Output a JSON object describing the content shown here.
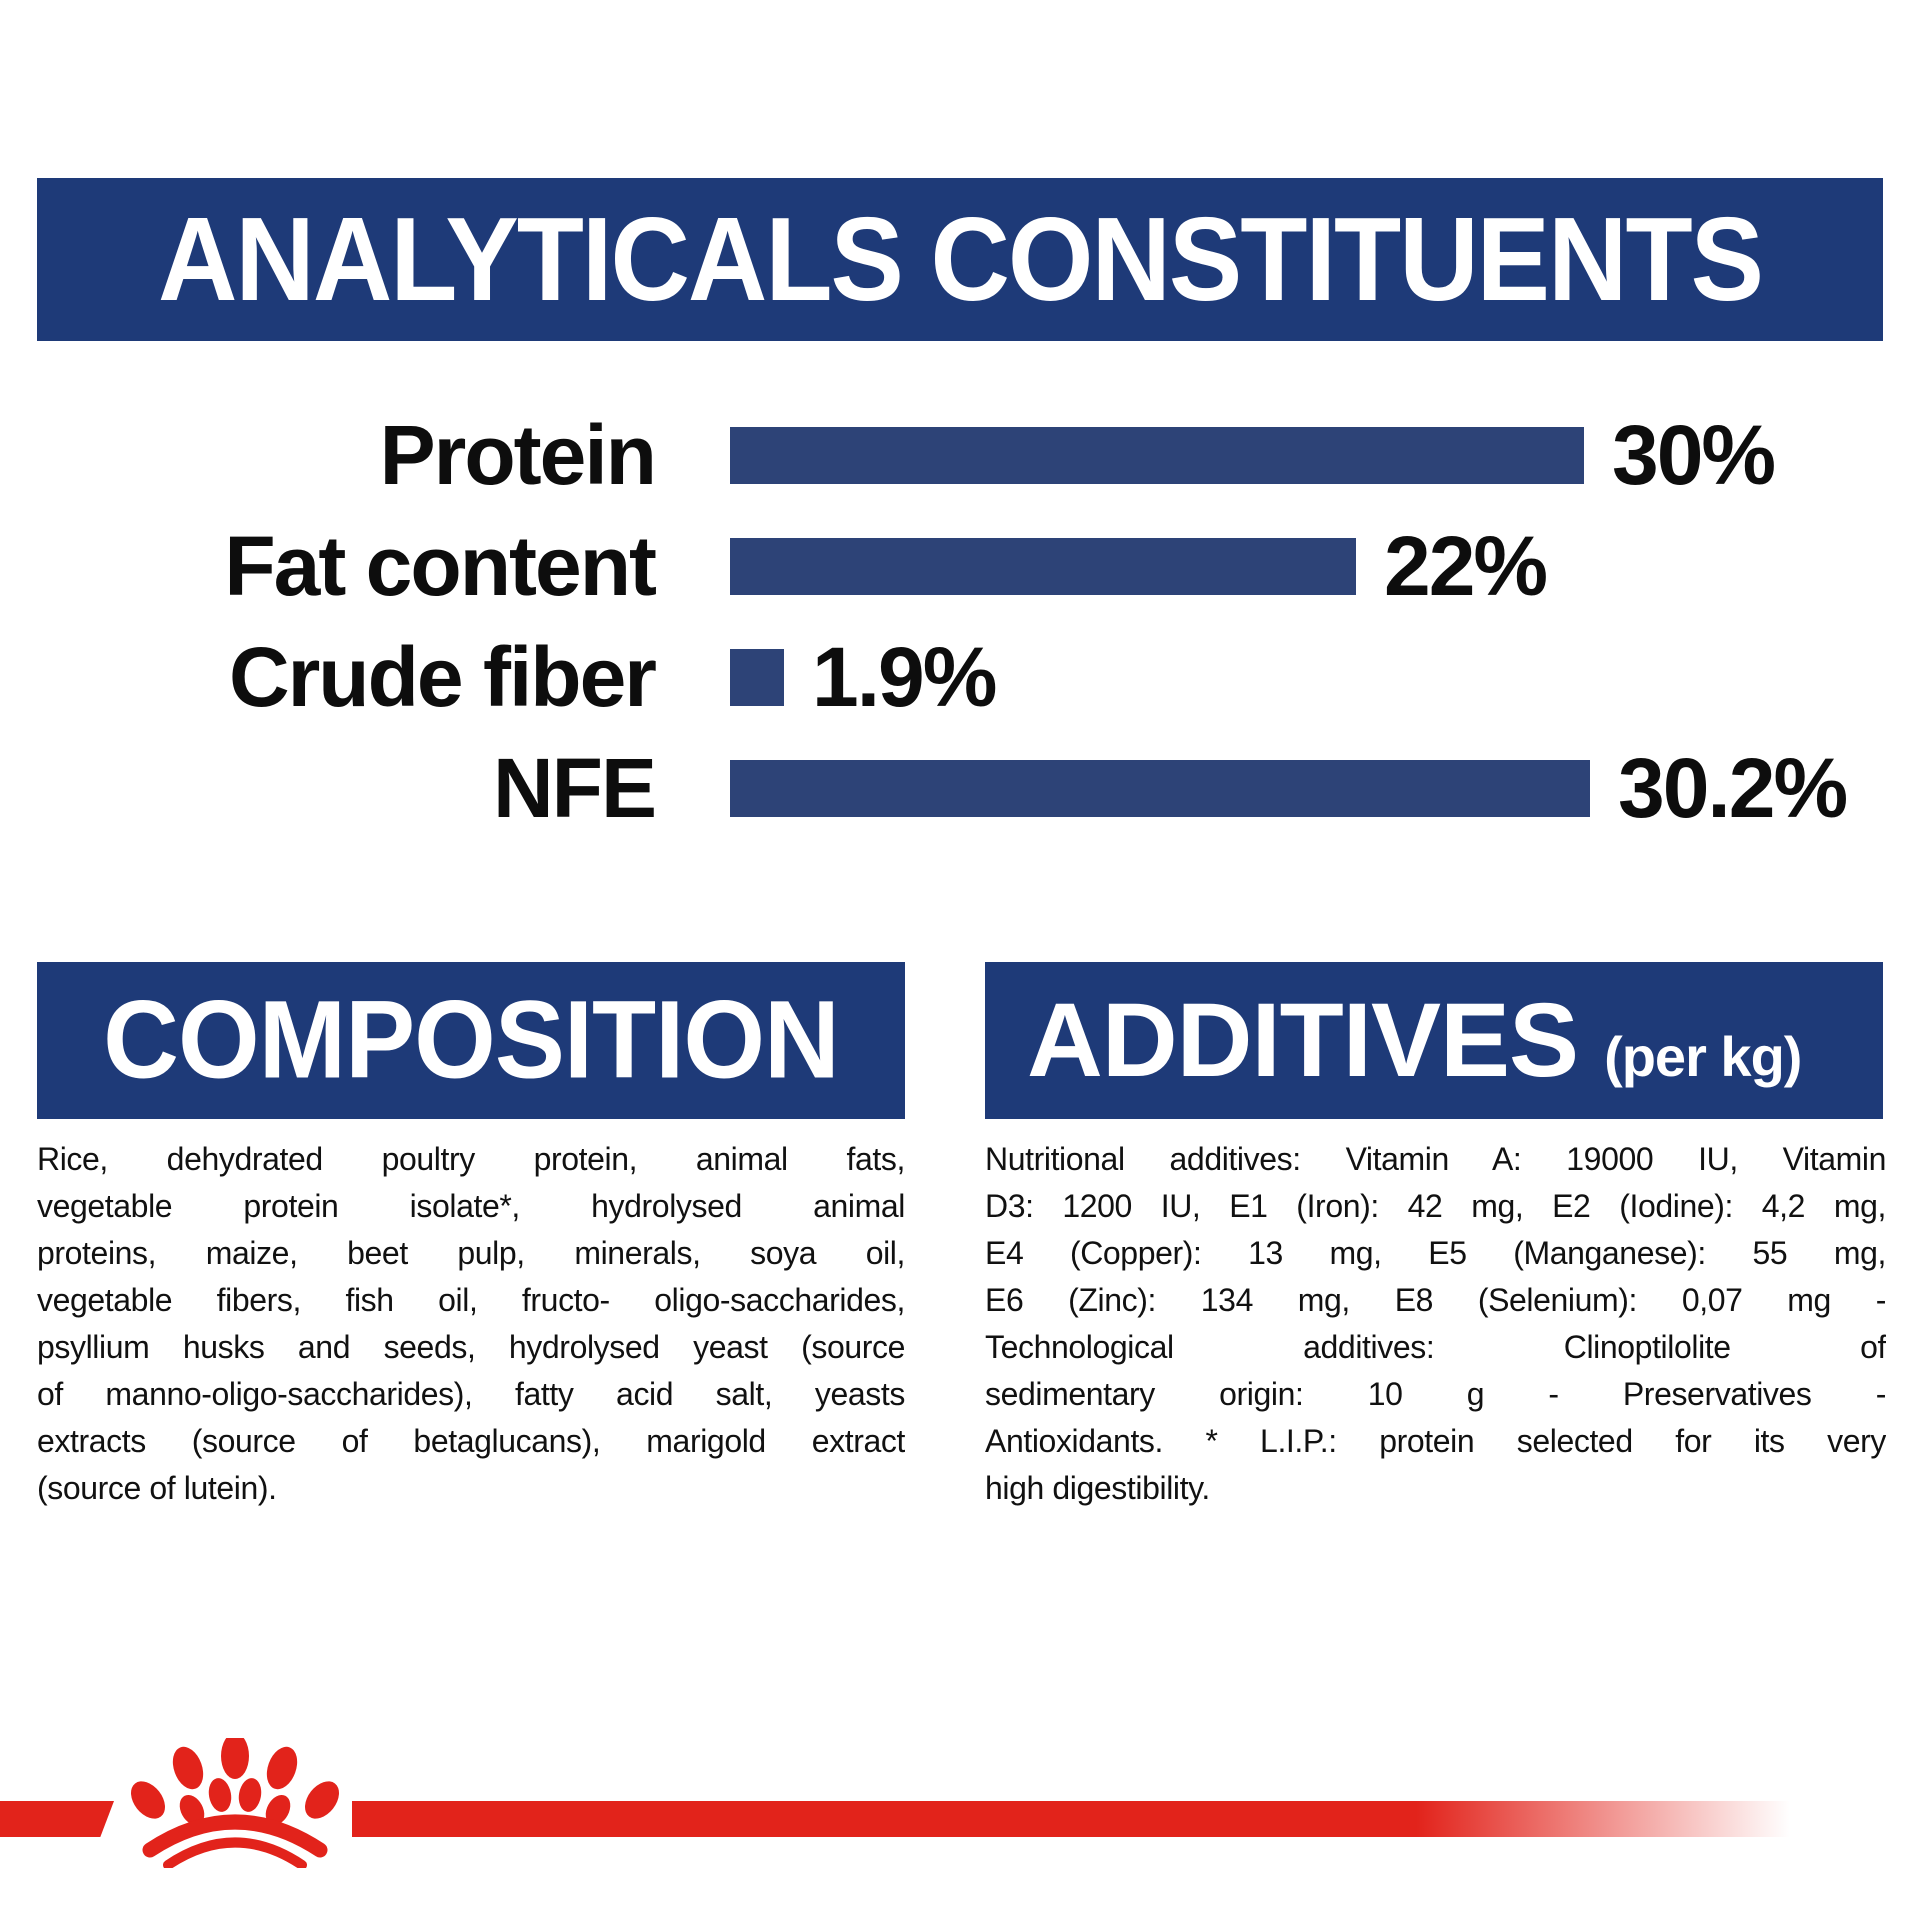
{
  "header": {
    "title": "ANALYTICALS CONSTITUENTS"
  },
  "chart_data": {
    "type": "bar",
    "orientation": "horizontal",
    "title": "ANALYTICALS CONSTITUENTS",
    "categories": [
      "Protein",
      "Fat content",
      "Crude fiber",
      "NFE"
    ],
    "values": [
      30,
      22,
      1.9,
      30.2
    ],
    "value_labels": [
      "30%",
      "22%",
      "1.9%",
      "30.2%"
    ],
    "xlabel": "",
    "ylabel": "",
    "xlim": [
      0,
      30.2
    ],
    "grid": false,
    "legend": false,
    "bar_color": "#2d4377",
    "label_color": "#0d0d0d"
  },
  "composition": {
    "title": "COMPOSITION",
    "lines": [
      "Rice, dehydrated poultry protein, animal fats,",
      "vegetable protein isolate*, hydrolysed animal",
      "proteins, maize, beet pulp, minerals, soya oil,",
      "vegetable fibers, fish oil, fructo- oligo-saccharides,",
      "psyllium husks and seeds, hydrolysed yeast (source",
      "of manno-oligo-saccharides), fatty acid salt, yeasts",
      "extracts (source of betaglucans), marigold extract",
      "(source of lutein)."
    ]
  },
  "additives": {
    "title": "ADDITIVES",
    "title_suffix": "(per kg)",
    "lines": [
      "Nutritional additives: Vitamin A: 19000 IU, Vitamin",
      "D3: 1200 IU, E1 (Iron): 42 mg, E2 (Iodine): 4,2 mg,",
      "E4 (Copper): 13 mg, E5 (Manganese): 55 mg,",
      "E6 (Zinc): 134 mg, E8 (Selenium): 0,07 mg -",
      "Technological additives: Clinoptilolite of",
      "sedimentary origin: 10 g - Preservatives -",
      "Antioxidants. * L.I.P.: protein selected for its very",
      "high digestibility."
    ]
  },
  "footer": {
    "logo": "royal-canin-crown-logo"
  },
  "colors": {
    "panel_blue": "#1e3a78",
    "bar_blue": "#2d4377",
    "accent_red": "#e2231b",
    "text_black": "#0d0d0d",
    "text_white": "#ffffff"
  }
}
